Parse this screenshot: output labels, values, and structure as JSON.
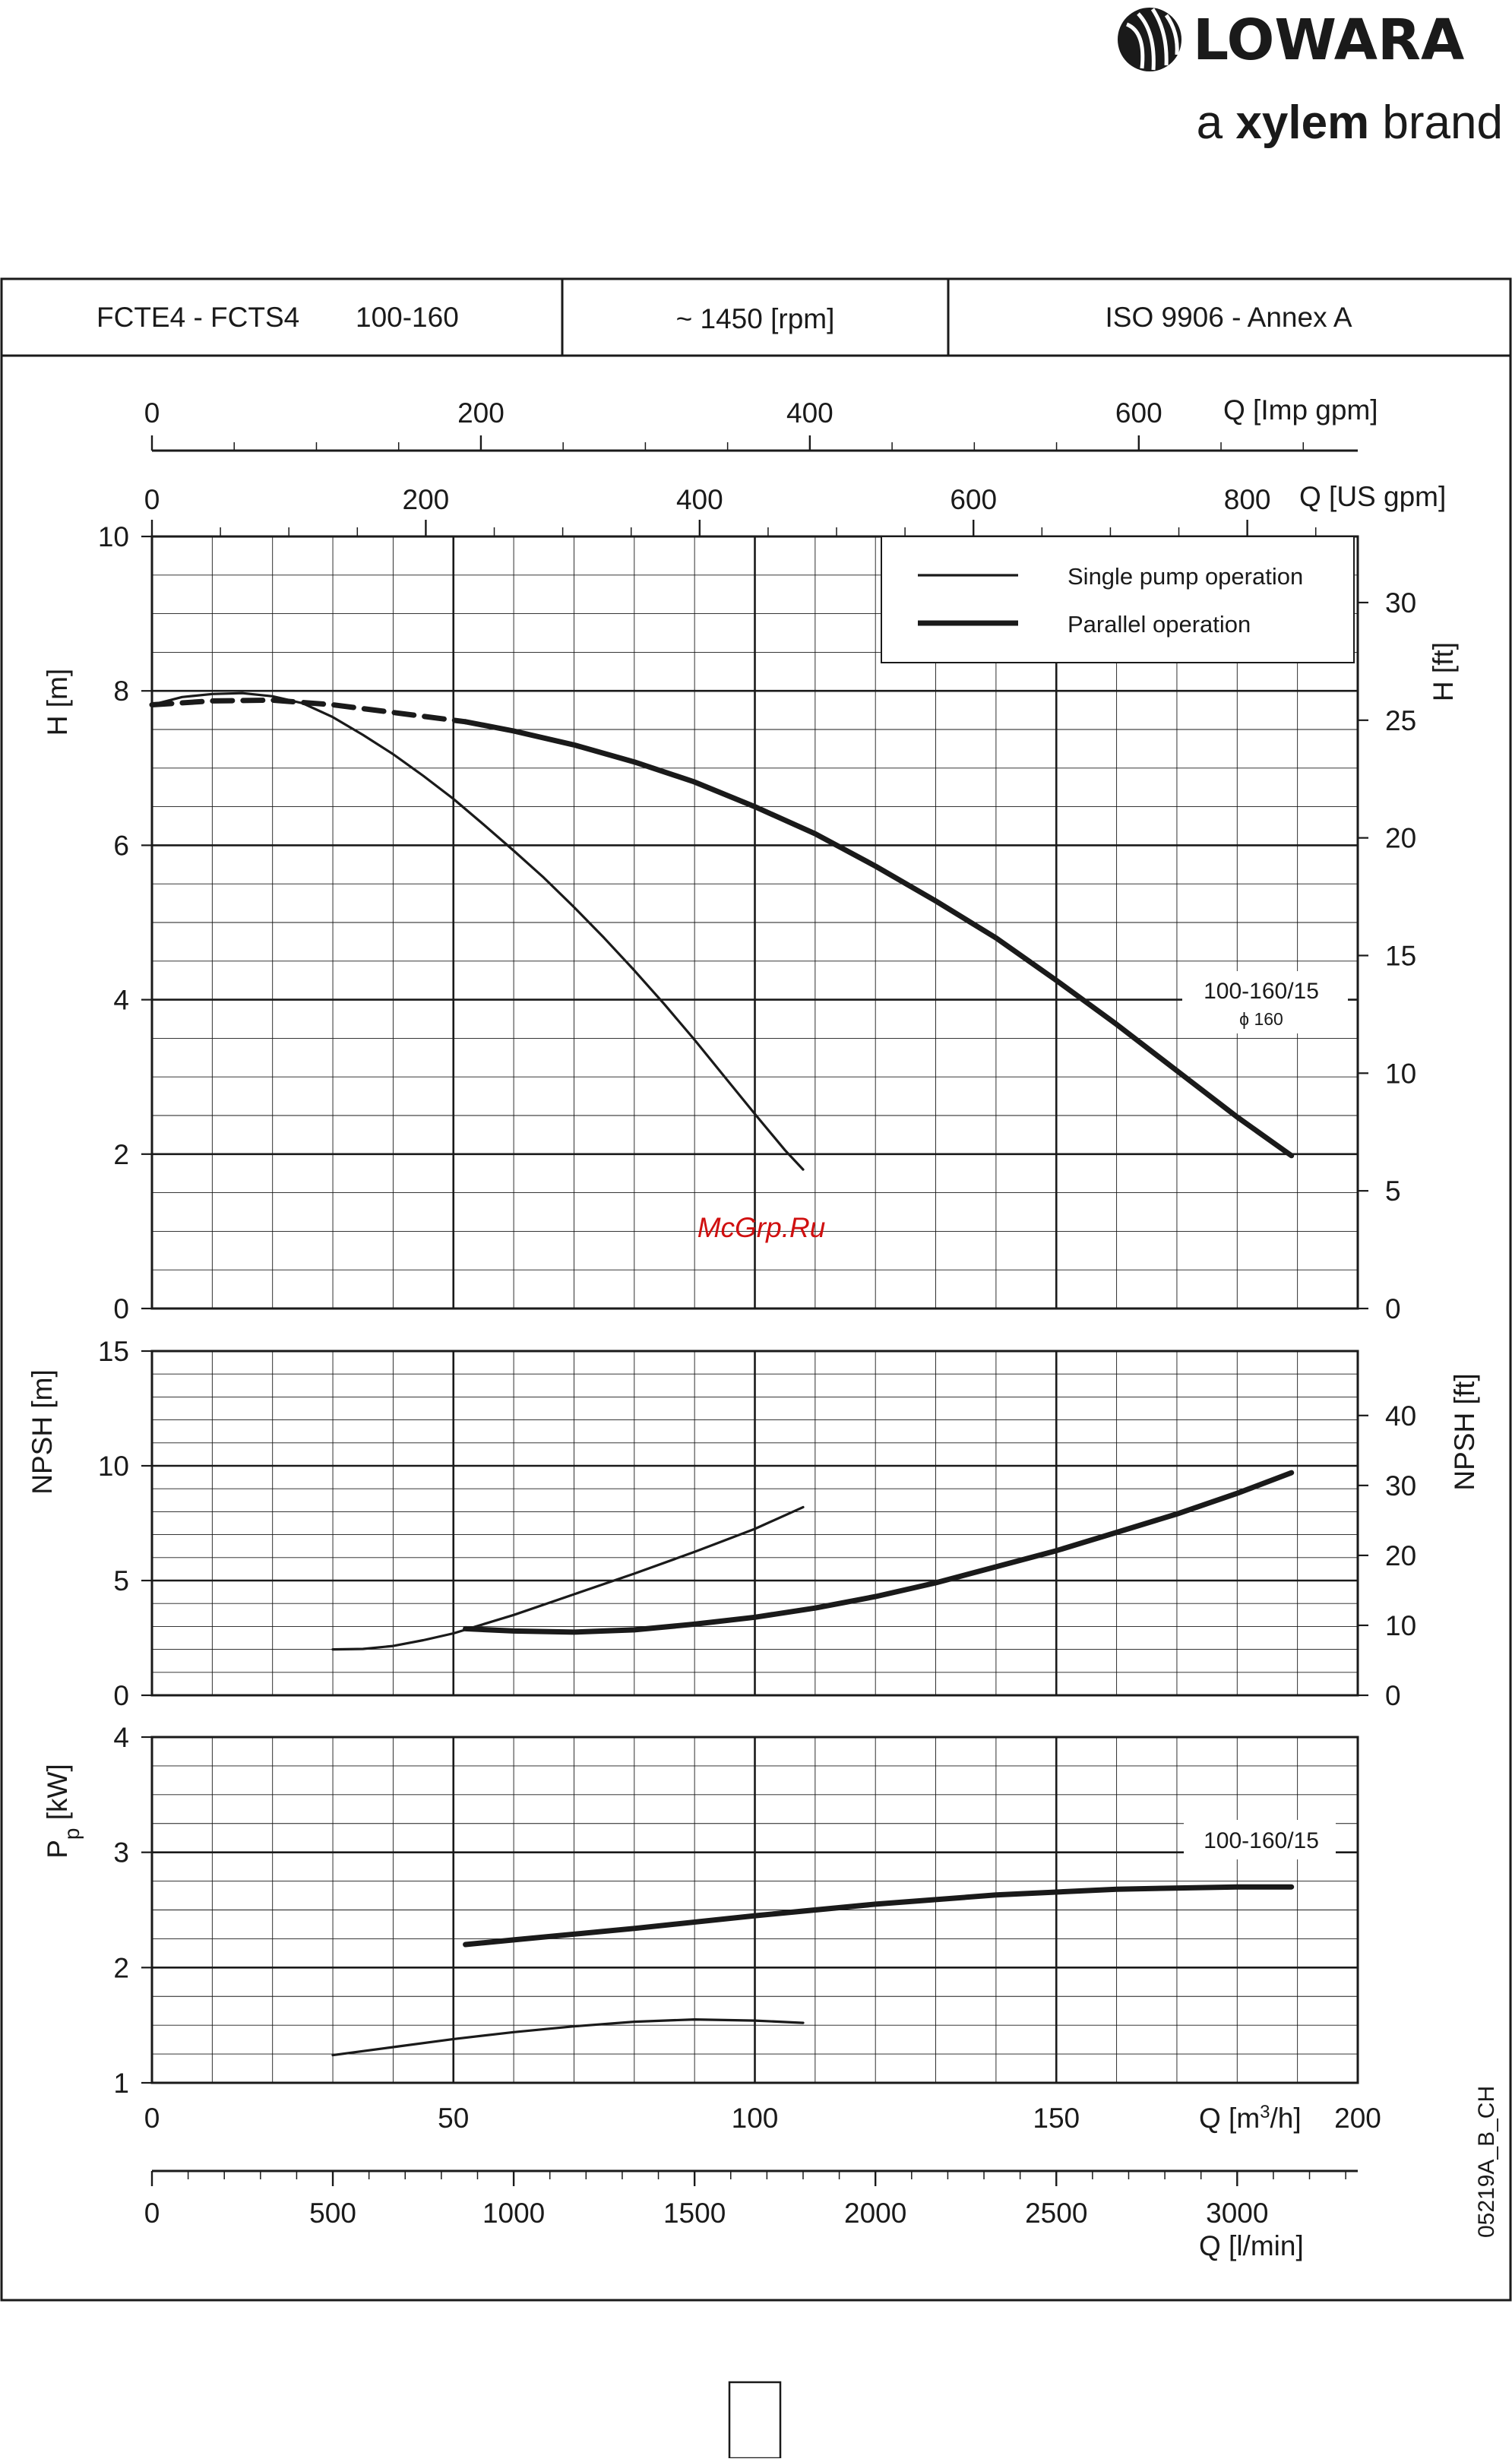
{
  "brand": {
    "name": "LOWARA",
    "tagline_prefix": "a",
    "tagline_brand": "xylem",
    "tagline_suffix": "brand"
  },
  "header": {
    "model": "FCTE4 - FCTS4",
    "size": "100-160",
    "speed": "~ 1450 [rpm]",
    "standard": "ISO 9906 - Annex A"
  },
  "watermark": "McGrp.Ru",
  "drawing_code": "05219A_B_CH",
  "colors": {
    "line": "#1a1a1a",
    "grid": "#1a1a1a",
    "watermark": "#d01010"
  },
  "chart_data": [
    {
      "type": "line",
      "id": "head",
      "xlabel": "Q [m3/h]",
      "xlim": [
        0,
        200
      ],
      "ylabel": "H [m]",
      "ylim": [
        0,
        10
      ],
      "yticks": [
        0,
        2,
        4,
        6,
        8,
        10
      ],
      "y2label": "H [ft]",
      "y2lim_ft": [
        0,
        32.81
      ],
      "y2ticks": [
        0,
        5,
        10,
        15,
        20,
        25,
        30
      ],
      "legend": {
        "placement": "top-right",
        "single": "Single pump operation",
        "parallel": "Parallel operation"
      },
      "annotation": {
        "label": "100-160/15",
        "sublabel": "ϕ 160"
      },
      "series": [
        {
          "name": "Single pump operation",
          "x": [
            0,
            5,
            10,
            15,
            20,
            25,
            30,
            35,
            40,
            45,
            50,
            55,
            60,
            65,
            70,
            75,
            80,
            85,
            90,
            95,
            100,
            105,
            108
          ],
          "y": [
            7.82,
            7.92,
            7.96,
            7.97,
            7.93,
            7.84,
            7.66,
            7.43,
            7.18,
            6.9,
            6.6,
            6.27,
            5.93,
            5.58,
            5.2,
            4.8,
            4.38,
            3.94,
            3.48,
            3.0,
            2.52,
            2.05,
            1.8
          ]
        },
        {
          "name": "Parallel operation",
          "x": [
            0,
            10,
            20,
            30,
            40,
            52,
            60,
            70,
            80,
            90,
            100,
            110,
            120,
            130,
            140,
            150,
            160,
            170,
            180,
            189
          ],
          "y": [
            7.82,
            7.87,
            7.88,
            7.82,
            7.72,
            7.6,
            7.48,
            7.3,
            7.08,
            6.82,
            6.5,
            6.15,
            5.73,
            5.28,
            4.8,
            4.25,
            3.68,
            3.08,
            2.48,
            1.98
          ]
        }
      ]
    },
    {
      "type": "line",
      "id": "npsh",
      "xlabel": "Q [m3/h]",
      "xlim": [
        0,
        200
      ],
      "ylabel": "NPSH [m]",
      "ylim": [
        0,
        15
      ],
      "yticks": [
        0,
        5,
        10,
        15
      ],
      "y2label": "NPSH [ft]",
      "y2ticks": [
        0,
        10,
        20,
        30,
        40
      ],
      "series": [
        {
          "name": "Single pump operation",
          "x": [
            30,
            35,
            40,
            45,
            50,
            60,
            70,
            80,
            90,
            100,
            108
          ],
          "y": [
            2.0,
            2.02,
            2.15,
            2.4,
            2.7,
            3.5,
            4.4,
            5.3,
            6.25,
            7.25,
            8.2
          ]
        },
        {
          "name": "Parallel operation",
          "x": [
            52,
            60,
            70,
            80,
            90,
            100,
            110,
            120,
            130,
            140,
            150,
            160,
            170,
            180,
            189
          ],
          "y": [
            2.9,
            2.8,
            2.75,
            2.85,
            3.1,
            3.4,
            3.8,
            4.3,
            4.9,
            5.6,
            6.3,
            7.1,
            7.9,
            8.8,
            9.7
          ]
        }
      ]
    },
    {
      "type": "line",
      "id": "power",
      "xlabel": "Q [m3/h]",
      "xlim": [
        0,
        200
      ],
      "ylabel": "Pp [kW]",
      "ylim": [
        1,
        4
      ],
      "yticks": [
        1,
        2,
        3,
        4
      ],
      "annotation": {
        "label": "100-160/15"
      },
      "series": [
        {
          "name": "Single pump operation",
          "x": [
            30,
            40,
            50,
            60,
            70,
            80,
            90,
            100,
            108
          ],
          "y": [
            1.24,
            1.31,
            1.38,
            1.44,
            1.49,
            1.53,
            1.55,
            1.54,
            1.52
          ]
        },
        {
          "name": "Parallel operation",
          "x": [
            52,
            60,
            80,
            100,
            120,
            140,
            160,
            180,
            189
          ],
          "y": [
            2.2,
            2.24,
            2.34,
            2.45,
            2.55,
            2.63,
            2.68,
            2.7,
            2.7
          ]
        }
      ]
    }
  ],
  "axes": {
    "q_m3h": {
      "label": "Q [m3/h]",
      "ticks": [
        0,
        50,
        100,
        150,
        200
      ]
    },
    "q_lmin": {
      "label": "Q [l/min]",
      "ticks": [
        0,
        500,
        1000,
        1500,
        2000,
        2500,
        3000
      ]
    },
    "q_usgpm": {
      "label": "Q [US gpm]",
      "ticks": [
        0,
        200,
        400,
        600,
        800
      ]
    },
    "q_impgpm": {
      "label": "Q [Imp gpm]",
      "ticks": [
        0,
        200,
        400,
        600
      ]
    }
  }
}
